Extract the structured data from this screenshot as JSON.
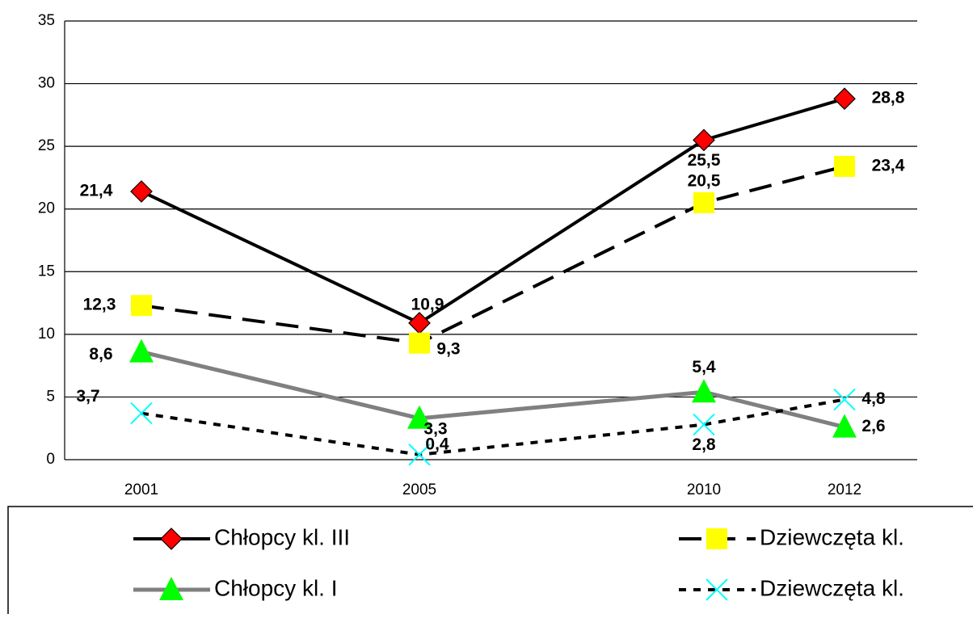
{
  "chart_data": {
    "type": "line",
    "categories": [
      "2001",
      "2005",
      "2010",
      "2012"
    ],
    "ylim": [
      0,
      35
    ],
    "yticks": [
      0,
      5,
      10,
      15,
      20,
      25,
      30,
      35
    ],
    "grid": true,
    "series": [
      {
        "name": "Chłopcy kl. III",
        "color": "#000000",
        "marker": "diamond",
        "marker_color": "#ff0000",
        "dash": "solid",
        "values": [
          21.4,
          10.9,
          25.5,
          28.8
        ],
        "value_labels": [
          "21,4",
          "10,9",
          "25,5",
          "28,8"
        ]
      },
      {
        "name": "Dziewczęta kl.",
        "color": "#000000",
        "marker": "square",
        "marker_color": "#ffff00",
        "dash": "dashed",
        "values": [
          12.3,
          9.3,
          20.5,
          23.4
        ],
        "value_labels": [
          "12,3",
          "9,3",
          "20,5",
          "23,4"
        ]
      },
      {
        "name": "Chłopcy kl. I",
        "color": "#808080",
        "marker": "triangle",
        "marker_color": "#00ff00",
        "dash": "solid",
        "values": [
          8.6,
          3.3,
          5.4,
          2.6
        ],
        "value_labels": [
          "8,6",
          "3,3",
          "5,4",
          "2,6"
        ]
      },
      {
        "name": "Dziewczęta kl.",
        "color": "#000000",
        "marker": "x",
        "marker_color": "#00ffff",
        "dash": "dotted",
        "values": [
          3.7,
          0.4,
          2.8,
          4.8
        ],
        "value_labels": [
          "3,7",
          "0,4",
          "2,8",
          "4,8"
        ]
      }
    ]
  }
}
